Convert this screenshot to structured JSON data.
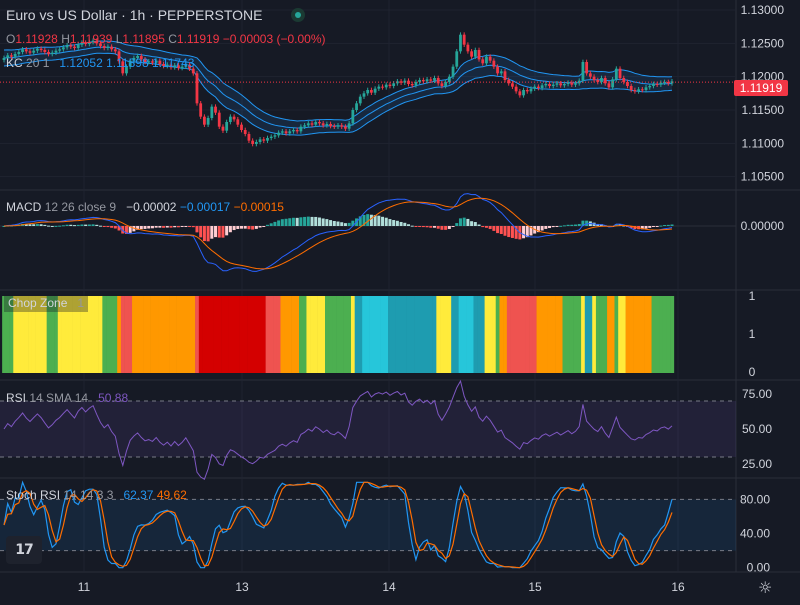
{
  "header": {
    "symbol_title": "Euro vs US Dollar · 1h · PEPPERSTONE",
    "ohlc": {
      "o_label": "O",
      "o": "1.11928",
      "h_label": "H",
      "h": "1.11939",
      "l_label": "L",
      "l": "1.11895",
      "c_label": "C",
      "c": "1.11919",
      "change": "−0.00003 (−0.00%)"
    }
  },
  "kc": {
    "label": "KC",
    "params": "20 1",
    "upper": "1.12052",
    "middle": "1.11898",
    "lower": "1.11743"
  },
  "macd": {
    "label": "MACD",
    "params": "12 26 close 9",
    "hist": "−0.00002",
    "macd": "−0.00017",
    "signal": "−0.00015"
  },
  "chop": {
    "label": "Chop Zone",
    "value": "1"
  },
  "rsi": {
    "label": "RSI",
    "params": "14 SMA 14",
    "value": "50.88"
  },
  "stoch": {
    "label": "Stoch RSI",
    "params": "14 14 3 3",
    "k": "62.37",
    "d": "49.62"
  },
  "price_tag": "1.11919",
  "logo": "17",
  "colors": {
    "up": "#26a69a",
    "down": "#f23645",
    "kc_band": "#2962ff",
    "macd_line": "#2962ff",
    "signal_line": "#ff6d00",
    "rsi_line": "#7e57c2",
    "stoch_k": "#2196f3",
    "stoch_d": "#ff6d00"
  },
  "chart_data": [
    {
      "type": "candlestick",
      "title": "Euro vs US Dollar · 1h · PEPPERSTONE",
      "y_ticks": [
        "1.13000",
        "1.12500",
        "1.12000",
        "1.11500",
        "1.11000",
        "1.10500"
      ],
      "ylim": [
        1.103,
        1.1315
      ],
      "x_ticks": [
        "11",
        "13",
        "14",
        "15",
        "16"
      ],
      "close": [
        1.1228,
        1.1232,
        1.123,
        1.1234,
        1.1237,
        1.1241,
        1.1238,
        1.1236,
        1.1239,
        1.1242,
        1.124,
        1.1237,
        1.1234,
        1.1236,
        1.1239,
        1.1241,
        1.1244,
        1.1247,
        1.1245,
        1.1243,
        1.1248,
        1.1251,
        1.1249,
        1.1252,
        1.1254,
        1.125,
        1.1246,
        1.1243,
        1.1245,
        1.1241,
        1.1238,
        1.1223,
        1.1205,
        1.1215,
        1.1224,
        1.1228,
        1.1231,
        1.1226,
        1.1222,
        1.1223,
        1.1221,
        1.1224,
        1.1219,
        1.1216,
        1.1218,
        1.1214,
        1.1217,
        1.1213,
        1.1215,
        1.1218,
        1.1212,
        1.1205,
        1.116,
        1.114,
        1.1128,
        1.1138,
        1.1155,
        1.1146,
        1.1125,
        1.1119,
        1.1132,
        1.114,
        1.1136,
        1.1128,
        1.112,
        1.1114,
        1.1104,
        1.1099,
        1.1102,
        1.1106,
        1.1104,
        1.1108,
        1.111,
        1.1112,
        1.1116,
        1.1118,
        1.1115,
        1.1118,
        1.112,
        1.1118,
        1.1125,
        1.1127,
        1.113,
        1.1128,
        1.1132,
        1.113,
        1.1127,
        1.1129,
        1.1126,
        1.1125,
        1.1127,
        1.1125,
        1.1122,
        1.113,
        1.115,
        1.116,
        1.117,
        1.1175,
        1.118,
        1.1176,
        1.1182,
        1.1185,
        1.1184,
        1.1188,
        1.1186,
        1.119,
        1.1193,
        1.1191,
        1.1194,
        1.1189,
        1.1187,
        1.1192,
        1.1195,
        1.1193,
        1.1196,
        1.1194,
        1.1198,
        1.119,
        1.1186,
        1.1192,
        1.12,
        1.1215,
        1.1238,
        1.1263,
        1.1248,
        1.1238,
        1.123,
        1.124,
        1.1226,
        1.122,
        1.123,
        1.1224,
        1.1215,
        1.1205,
        1.1208,
        1.1195,
        1.119,
        1.1185,
        1.1178,
        1.1172,
        1.118,
        1.1178,
        1.1182,
        1.1185,
        1.1183,
        1.1187,
        1.1189,
        1.1186,
        1.1188,
        1.119,
        1.1187,
        1.1189,
        1.1191,
        1.1188,
        1.119,
        1.1194,
        1.1222,
        1.1205,
        1.12,
        1.1195,
        1.1192,
        1.1198,
        1.119,
        1.1184,
        1.1196,
        1.1212,
        1.1198,
        1.1192,
        1.1186,
        1.118,
        1.1178,
        1.1181,
        1.118,
        1.1184,
        1.1186,
        1.1189,
        1.1188,
        1.1191,
        1.1192,
        1.119,
        1.1193
      ],
      "overlay": "Keltner Channels (20, 1): upper 1.12052, middle 1.11898, lower 1.11743",
      "last_price": 1.11919
    },
    {
      "type": "bar+line",
      "name": "MACD (12, 26, close, 9)",
      "y_ticks": [
        "0.00000"
      ],
      "values": {
        "histogram": -2e-05,
        "macd": -0.00017,
        "signal": -0.00015
      }
    },
    {
      "type": "bar",
      "name": "Chop Zone",
      "y_ticks": [
        "1",
        "1",
        "0"
      ],
      "value": 1,
      "zone_colors": [
        "#26c6da",
        "#1e9cb0",
        "#ef5350",
        "#d40000",
        "#ffeb3b",
        "#ff9800",
        "#e91e63",
        "#4caf50"
      ]
    },
    {
      "type": "line",
      "name": "RSI (14, SMA 14)",
      "y_ticks": [
        "75.00",
        "50.00",
        "25.00"
      ],
      "ylim": [
        15,
        85
      ],
      "bands": [
        70,
        30
      ],
      "last": 50.88
    },
    {
      "type": "line",
      "name": "Stoch RSI (14, 14, 3, 3)",
      "y_ticks": [
        "80.00",
        "40.00",
        "0.00"
      ],
      "ylim": [
        -5,
        105
      ],
      "bands": [
        80,
        20
      ],
      "k": 62.37,
      "d": 49.62
    }
  ]
}
